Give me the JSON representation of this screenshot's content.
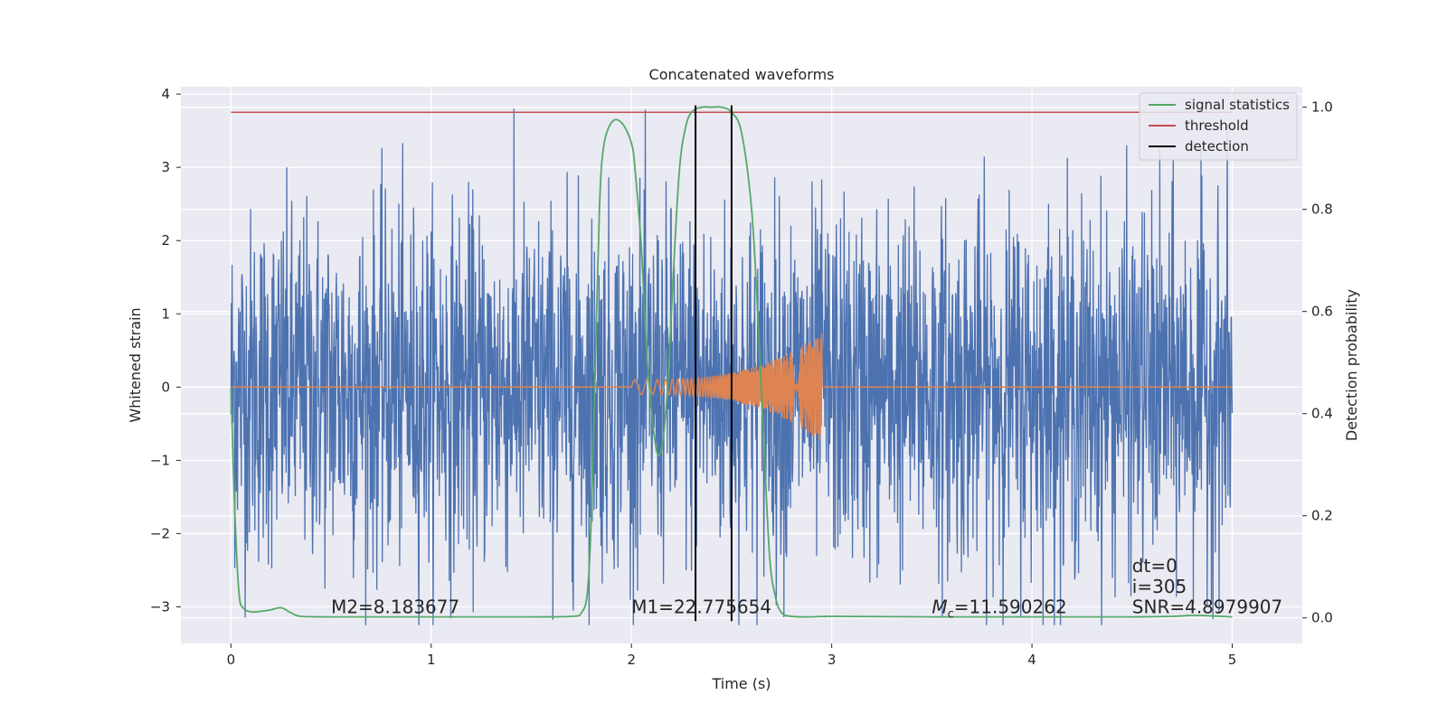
{
  "chart_data": {
    "type": "line",
    "title": "Concatenated waveforms",
    "xlabel": "Time (s)",
    "ylabel": "Whitened strain",
    "y2label": "Detection probability",
    "xlim": [
      -0.25,
      5.35
    ],
    "ylim": [
      -3.5,
      4.1
    ],
    "y2lim": [
      -0.05,
      1.04
    ],
    "xticks": [
      0,
      1,
      2,
      3,
      4,
      5
    ],
    "xtick_labels": [
      "0",
      "1",
      "2",
      "3",
      "4",
      "5"
    ],
    "yticks": [
      -3,
      -2,
      -1,
      0,
      1,
      2,
      3,
      4
    ],
    "ytick_labels": [
      "−3",
      "−2",
      "−1",
      "0",
      "1",
      "2",
      "3",
      "4"
    ],
    "y2ticks": [
      0.0,
      0.2,
      0.4,
      0.6,
      0.8,
      1.0
    ],
    "y2tick_labels": [
      "0.0",
      "0.2",
      "0.4",
      "0.6",
      "0.8",
      "1.0"
    ],
    "grid": true,
    "legend_position": "top-right",
    "legend": [
      {
        "label": "signal statistics",
        "color": "#55a868"
      },
      {
        "label": "threshold",
        "color": "#c44e52"
      },
      {
        "label": "detection",
        "color": "#000000"
      }
    ],
    "series": [
      {
        "kind": "noisy-strain",
        "color": "#4c72b0",
        "x_range": [
          0,
          5
        ],
        "amplitude_approx": 1.2,
        "peak_max": 3.8,
        "peak_min": -3.25
      },
      {
        "kind": "chirp-template",
        "color": "#dd8452",
        "x_range": [
          0,
          5
        ],
        "chirp_start": 2.0,
        "chirp_end": 2.95,
        "amplitude_start": 0.1,
        "amplitude_end": 0.75
      },
      {
        "name": "signal statistics",
        "color": "#55a868",
        "axis": "right",
        "x": [
          0,
          0.02,
          0.04,
          0.06,
          0.1,
          0.15,
          0.2,
          0.25,
          0.3,
          0.35,
          0.5,
          1.0,
          1.5,
          1.7,
          1.75,
          1.78,
          1.8,
          1.82,
          1.84,
          1.86,
          1.9,
          1.95,
          2.0,
          2.02,
          2.05,
          2.08,
          2.12,
          2.15,
          2.18,
          2.21,
          2.24,
          2.27,
          2.3,
          2.35,
          2.4,
          2.45,
          2.5,
          2.55,
          2.6,
          2.63,
          2.66,
          2.69,
          2.72,
          2.75,
          2.8,
          2.9,
          3.0,
          3.5,
          4.0,
          4.5,
          4.7,
          4.8,
          4.9,
          5.0
        ],
        "y": [
          0.45,
          0.2,
          0.05,
          0.02,
          0.012,
          0.013,
          0.016,
          0.02,
          0.01,
          0.003,
          0.002,
          0.002,
          0.002,
          0.003,
          0.01,
          0.05,
          0.2,
          0.5,
          0.8,
          0.92,
          0.97,
          0.97,
          0.93,
          0.87,
          0.72,
          0.5,
          0.34,
          0.33,
          0.45,
          0.68,
          0.88,
          0.96,
          0.99,
          1.0,
          1.0,
          1.0,
          0.99,
          0.95,
          0.8,
          0.6,
          0.35,
          0.12,
          0.04,
          0.01,
          0.003,
          0.002,
          0.003,
          0.002,
          0.002,
          0.002,
          0.003,
          0.005,
          0.004,
          0.002
        ]
      },
      {
        "name": "threshold",
        "color": "#c44e52",
        "axis": "right",
        "x": [
          0,
          5
        ],
        "y": [
          0.99,
          0.99
        ]
      }
    ],
    "detections": [
      {
        "x": 2.32,
        "color": "#000000"
      },
      {
        "x": 2.5,
        "color": "#000000"
      }
    ],
    "annotations": [
      {
        "text": "M2=8.183677",
        "x": 0.5,
        "y": -3.0
      },
      {
        "text": "M1=22.775654",
        "x": 2.0,
        "y": -3.0
      },
      {
        "text": "=11.590262",
        "x": 3.5,
        "y": -3.0,
        "math_prefix": "M",
        "math_sub": "c"
      },
      {
        "text": "dt=0",
        "x": 4.5,
        "y": -2.44
      },
      {
        "text": "i=305",
        "x": 4.5,
        "y": -2.72
      },
      {
        "text": "SNR=4.8979907",
        "x": 4.5,
        "y": -3.0
      }
    ]
  }
}
